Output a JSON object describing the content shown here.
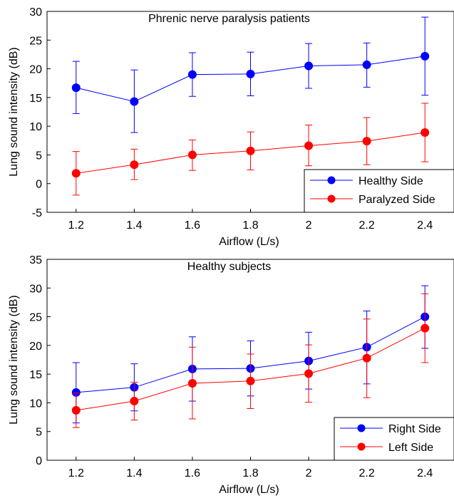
{
  "chart_data": [
    {
      "type": "line",
      "title": "Phrenic nerve paralysis patients",
      "xlabel": "Airflow (L/s)",
      "ylabel": "Lung sound intensity (dB)",
      "x": [
        1.2,
        1.4,
        1.6,
        1.8,
        2,
        2.2,
        2.4
      ],
      "xticks": [
        "1.2",
        "1.4",
        "1.6",
        "1.8",
        "2",
        "2.2",
        "2.4"
      ],
      "xlim": [
        1.1,
        2.5
      ],
      "ylim": [
        -5,
        30
      ],
      "yticks": [
        -5,
        0,
        5,
        10,
        15,
        20,
        25,
        30
      ],
      "legend_position": "bottom-right",
      "series": [
        {
          "name": "Healthy Side",
          "color": "#0000ff",
          "values": [
            16.7,
            14.3,
            19.0,
            19.1,
            20.5,
            20.7,
            22.2
          ],
          "err_low": [
            12.2,
            8.9,
            15.2,
            15.3,
            16.6,
            16.8,
            15.4
          ],
          "err_high": [
            21.3,
            19.8,
            22.8,
            22.9,
            24.4,
            24.5,
            29.0
          ]
        },
        {
          "name": "Paralyzed Side",
          "color": "#ff0000",
          "values": [
            1.8,
            3.3,
            5.0,
            5.7,
            6.6,
            7.4,
            8.9
          ],
          "err_low": [
            -2.0,
            0.7,
            2.3,
            2.4,
            3.1,
            3.3,
            3.8
          ],
          "err_high": [
            5.6,
            6.0,
            7.6,
            9.0,
            10.2,
            11.5,
            14.0
          ]
        }
      ]
    },
    {
      "type": "line",
      "title": "Healthy subjects",
      "xlabel": "Airflow (L/s)",
      "ylabel": "Lung sound intensity (dB)",
      "x": [
        1.2,
        1.4,
        1.6,
        1.8,
        2,
        2.2,
        2.4
      ],
      "xticks": [
        "1.2",
        "1.4",
        "1.6",
        "1.8",
        "2",
        "2.2",
        "2.4"
      ],
      "xlim": [
        1.1,
        2.5
      ],
      "ylim": [
        0,
        35
      ],
      "yticks": [
        0,
        5,
        10,
        15,
        20,
        25,
        30,
        35
      ],
      "legend_position": "bottom-right",
      "series": [
        {
          "name": "Right Side",
          "color": "#0000ff",
          "values": [
            11.8,
            12.7,
            15.9,
            16.0,
            17.3,
            19.7,
            25.0
          ],
          "err_low": [
            6.5,
            8.6,
            10.3,
            11.2,
            12.4,
            13.3,
            19.5
          ],
          "err_high": [
            17.0,
            16.8,
            21.5,
            20.8,
            22.3,
            26.0,
            30.4
          ]
        },
        {
          "name": "Left Side",
          "color": "#ff0000",
          "values": [
            8.7,
            10.3,
            13.4,
            13.8,
            15.1,
            17.8,
            23.0
          ],
          "err_low": [
            5.7,
            7.0,
            7.2,
            9.0,
            10.1,
            10.9,
            17.0
          ],
          "err_high": [
            11.7,
            13.6,
            19.7,
            18.5,
            20.1,
            24.6,
            29.0
          ]
        }
      ]
    }
  ]
}
